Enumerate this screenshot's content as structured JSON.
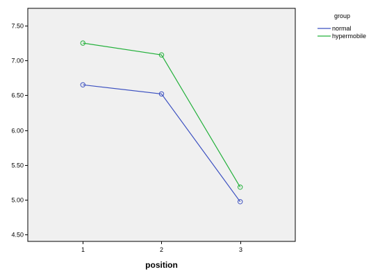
{
  "colors": {
    "background": "#ffffff",
    "plot_area": "#f0f0f0",
    "axis": "#000000"
  },
  "chart_data": {
    "type": "line",
    "title": "",
    "xlabel": "position",
    "ylabel": "",
    "x": [
      1,
      2,
      3
    ],
    "x_tick_labels": [
      "1",
      "2",
      "3"
    ],
    "xlim": [
      0.3,
      3.7
    ],
    "ylim": [
      4.4,
      7.75
    ],
    "y_ticks": [
      4.5,
      5.0,
      5.5,
      6.0,
      6.5,
      7.0,
      7.5
    ],
    "y_tick_labels": [
      "4.50",
      "5.00",
      "5.50",
      "6.00",
      "6.50",
      "7.00",
      "7.50"
    ],
    "grid": false,
    "legend": {
      "title": "group",
      "position": "top-right, outside plot"
    },
    "series": [
      {
        "name": "normal",
        "color": "#3a4fc0",
        "values": [
          6.65,
          6.52,
          4.97
        ],
        "marker": "open-circle"
      },
      {
        "name": "hypermobile",
        "color": "#22b03a",
        "values": [
          7.25,
          7.08,
          5.18
        ],
        "marker": "open-circle"
      }
    ]
  }
}
